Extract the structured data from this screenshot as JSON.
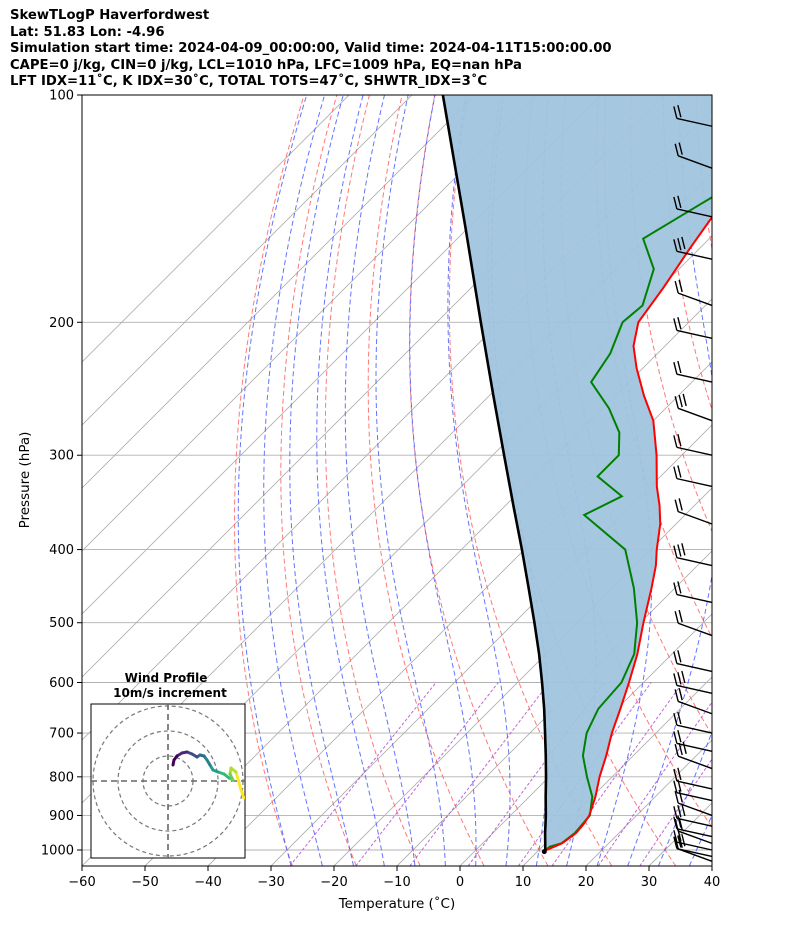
{
  "header": {
    "line1": "SkewTLogP Haverfordwest",
    "line2": "Lat: 51.83   Lon: -4.96",
    "line3": "Simulation start time: 2024-04-09_00:00:00, Valid time: 2024-04-11T15:00:00.00",
    "line4": "CAPE=0 j/kg, CIN=0 j/kg, LCL=1010 hPa, LFC=1009 hPa, EQ=nan hPa",
    "line5": "LFT IDX=11˚C, K IDX=30˚C, TOTAL TOTS=47˚C, SHWTR_IDX=3˚C"
  },
  "chart_data": {
    "type": "line",
    "xlabel": "Temperature (˚C)",
    "ylabel": "Pressure (hPa)",
    "xlim": [
      -60,
      40
    ],
    "ylim": [
      1050,
      100
    ],
    "y_scale": "log",
    "xticks": [
      -60,
      -50,
      -40,
      -30,
      -20,
      -10,
      0,
      10,
      20,
      30,
      40
    ],
    "yticks": [
      1000,
      900,
      800,
      700,
      600,
      500,
      400,
      300,
      200,
      100
    ],
    "grid": true,
    "skew_x_degrees": 45,
    "colors": {
      "temperature": "#ff0000",
      "dewpoint": "#008000",
      "parcel": "#000000",
      "cape_fill": "#a0c4de",
      "dry_adiabats": "#ff6060",
      "moist_adiabats": "#4a5cff",
      "mixing_ratio": "#b040d0",
      "isotherms": "#b0b0b0",
      "isobars": "#b0b0b0"
    },
    "series": [
      {
        "key": "temperature",
        "pressure": [
          1003,
          980,
          950,
          925,
          900,
          850,
          800,
          750,
          700,
          650,
          600,
          550,
          500,
          450,
          420,
          400,
          370,
          350,
          330,
          300,
          270,
          250,
          230,
          215,
          200,
          180,
          160,
          145,
          130,
          120,
          110,
          100
        ],
        "values": [
          11.0,
          12.6,
          13.2,
          13.0,
          12.5,
          10.5,
          8.0,
          5.7,
          3.0,
          0.5,
          -2.3,
          -5.5,
          -9.5,
          -13.7,
          -16.6,
          -19.0,
          -22.5,
          -25.5,
          -29.0,
          -34.0,
          -40.0,
          -45.5,
          -51.0,
          -55.0,
          -58.0,
          -59.5,
          -61.5,
          -63.0,
          -64.0,
          -66.0,
          -68.0,
          -71.0
        ]
      },
      {
        "key": "dewpoint",
        "pressure": [
          1003,
          990,
          980,
          950,
          900,
          850,
          800,
          750,
          700,
          650,
          600,
          550,
          500,
          450,
          400,
          360,
          340,
          320,
          300,
          280,
          260,
          240,
          220,
          200,
          190,
          170,
          155,
          140,
          125,
          110,
          100
        ],
        "values": [
          11.0,
          11.2,
          12.5,
          13.0,
          12.6,
          10.0,
          6.0,
          2.0,
          -1.0,
          -3.0,
          -3.5,
          -6.0,
          -10.5,
          -16.5,
          -24.0,
          -36.0,
          -33.0,
          -40.0,
          -40.0,
          -43.5,
          -49.0,
          -56.0,
          -57.5,
          -60.5,
          -60.0,
          -64.0,
          -70.5,
          -67.0,
          -63.0,
          -60.0,
          -58.0
        ]
      },
      {
        "key": "parcel",
        "pressure": [
          1005,
          1000,
          950,
          900,
          850,
          800,
          750,
          700,
          650,
          600,
          550,
          500,
          450,
          400,
          350,
          300,
          250,
          200,
          150,
          100
        ],
        "values": [
          11.1,
          11.0,
          8.3,
          5.6,
          2.6,
          -0.5,
          -3.9,
          -7.6,
          -11.6,
          -16.1,
          -21.1,
          -26.8,
          -33.2,
          -40.4,
          -48.7,
          -58.2,
          -69.4,
          -83.0,
          -100.4,
          -125.1
        ]
      }
    ],
    "wind_barbs_pressure": [
      1035,
      1020,
      1000,
      980,
      960,
      930,
      900,
      860,
      830,
      780,
      740,
      700,
      660,
      620,
      580,
      520,
      470,
      420,
      370,
      330,
      300,
      270,
      240,
      210,
      190,
      165,
      145,
      125,
      110
    ],
    "hodograph": {
      "title": "Wind Profile",
      "subtitle": "10m/s increment",
      "ring_increment_ms": 10,
      "colormap": "viridis"
    }
  }
}
